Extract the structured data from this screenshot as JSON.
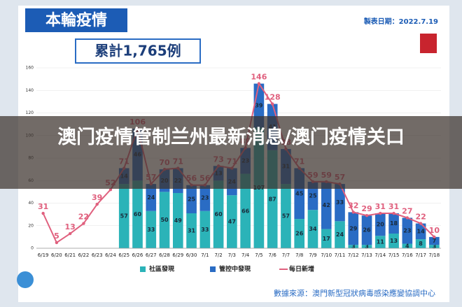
{
  "header": {
    "title": "本輪疫情",
    "date": "製表日期：2022.7.19",
    "total": "累計1,765例",
    "source": "數據來源：澳門新型冠狀病毒感染應變協調中心"
  },
  "banner": {
    "text": "澳门疫情管制兰州最新消息/澳门疫情关口"
  },
  "chart_data": {
    "type": "bar",
    "stacked": true,
    "categories": [
      "6/19",
      "6/20",
      "6/21",
      "6/22",
      "6/23",
      "6/24",
      "6/25",
      "6/26",
      "6/27",
      "6/28",
      "6/29",
      "6/30",
      "7/1",
      "7/2",
      "7/3",
      "7/4",
      "7/5",
      "7/6",
      "7/7",
      "7/8",
      "7/9",
      "7/10",
      "7/11",
      "7/12",
      "7/13",
      "7/14",
      "7/15",
      "7/16",
      "7/17",
      "7/18"
    ],
    "series": [
      {
        "name": "社區發現",
        "type": "bar",
        "color": "#2bb3b8",
        "values": [
          null,
          null,
          null,
          null,
          null,
          null,
          57,
          60,
          33,
          50,
          49,
          31,
          33,
          60,
          47,
          66,
          107,
          87,
          57,
          26,
          34,
          17,
          24,
          3,
          3,
          11,
          13,
          4,
          8,
          3
        ]
      },
      {
        "name": "管控中發現",
        "type": "bar",
        "color": "#2a6cc4",
        "values": [
          null,
          null,
          null,
          null,
          null,
          null,
          14,
          46,
          24,
          20,
          22,
          25,
          23,
          13,
          24,
          23,
          39,
          41,
          31,
          45,
          25,
          42,
          33,
          29,
          26,
          20,
          18,
          23,
          14,
          7
        ]
      },
      {
        "name": "每日新增",
        "type": "line",
        "color": "#e0607e",
        "values": [
          31,
          5,
          13,
          22,
          39,
          52,
          71,
          106,
          57,
          70,
          71,
          56,
          56,
          73,
          71,
          89,
          146,
          128,
          88,
          71,
          59,
          59,
          57,
          32,
          29,
          31,
          31,
          27,
          22,
          10
        ]
      }
    ],
    "ylim": [
      0,
      160
    ],
    "yticks": [
      0,
      20,
      40,
      60,
      80,
      100,
      120,
      140,
      160
    ],
    "grid": true
  }
}
